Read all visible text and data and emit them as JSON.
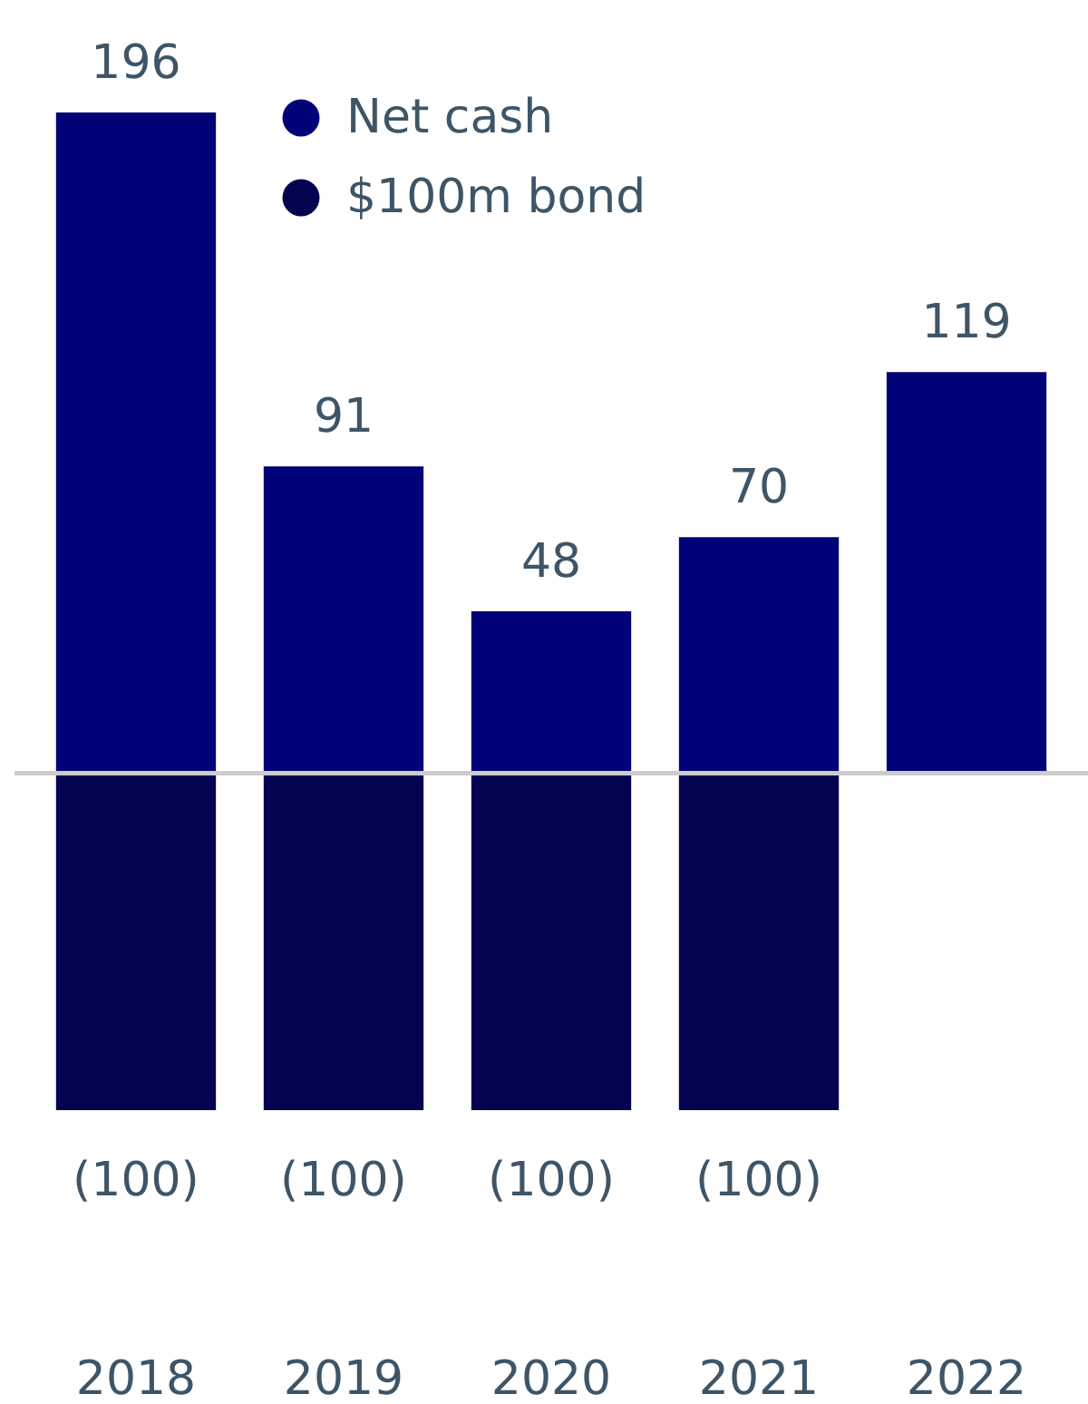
{
  "chart_data": {
    "type": "bar",
    "categories": [
      "2018",
      "2019",
      "2020",
      "2021",
      "2022"
    ],
    "series": [
      {
        "name": "Net cash",
        "color": "#020278",
        "values": [
          196,
          91,
          48,
          70,
          119
        ],
        "value_labels": [
          "196",
          "91",
          "48",
          "70",
          "119"
        ]
      },
      {
        "name": "$100m bond",
        "color": "#03034f",
        "values": [
          -100,
          -100,
          -100,
          -100,
          null
        ],
        "value_labels": [
          "(100)",
          "(100)",
          "(100)",
          "(100)",
          null
        ]
      }
    ],
    "stacked": true,
    "legend": "top"
  }
}
